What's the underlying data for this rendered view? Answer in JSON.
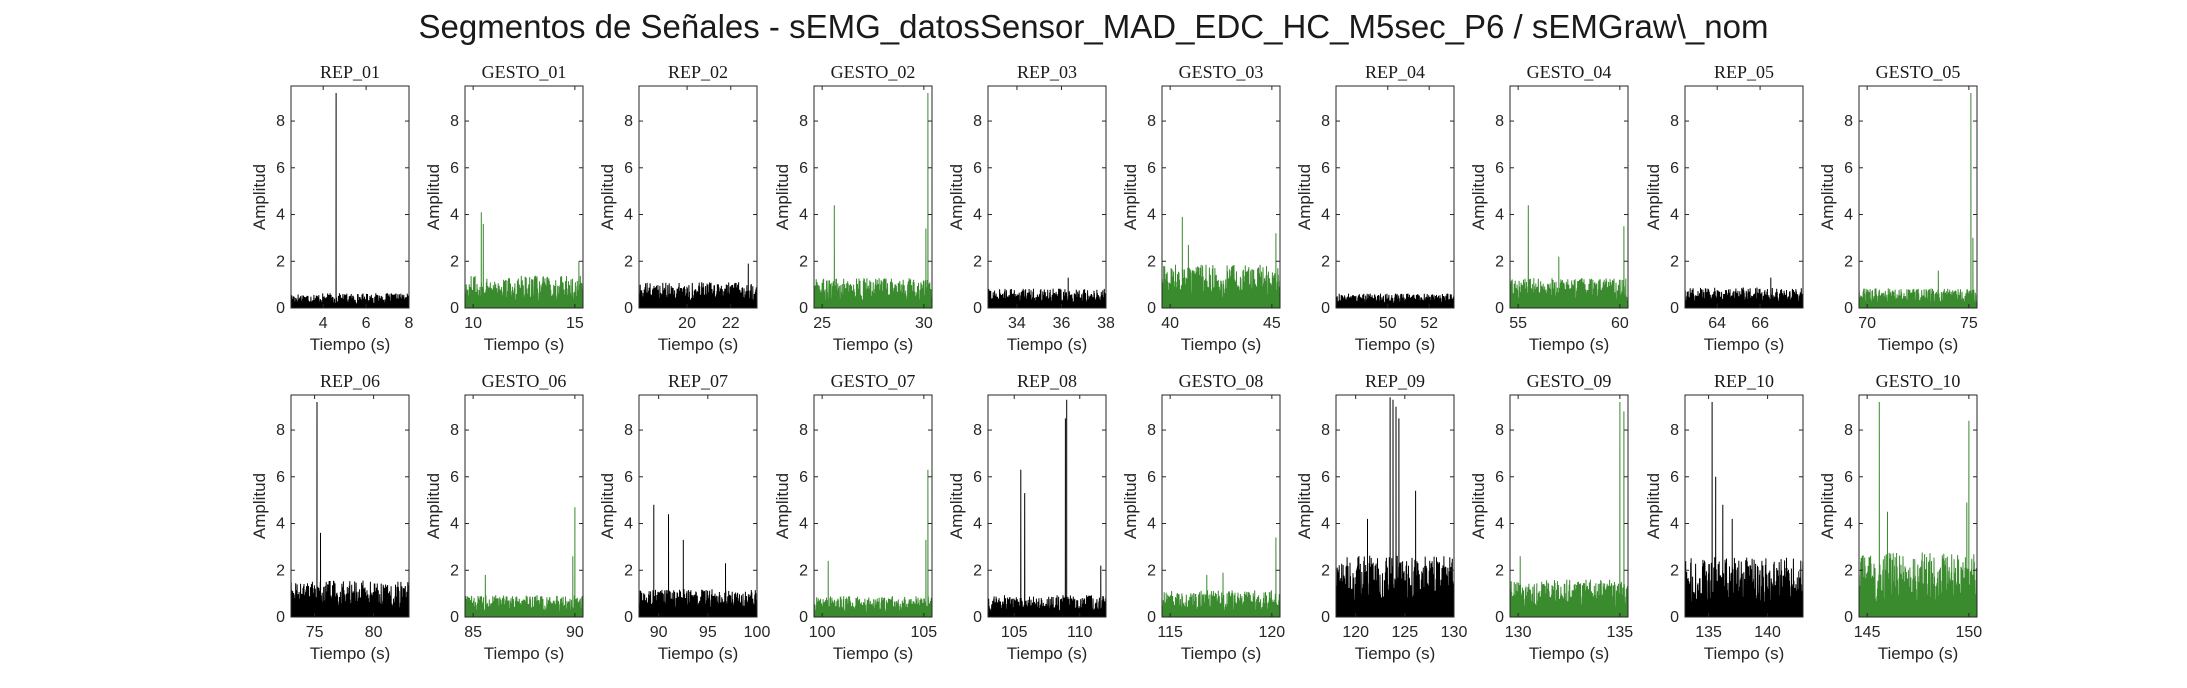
{
  "figure": {
    "title": "Segmentos de Señales - sEMG_datosSensor_MAD_EDC_HC_M5sec_P6 / sEMGraw\\_nom"
  },
  "colors": {
    "rep": "#000000",
    "gesto": "#3a8a2e"
  },
  "chart_data": [
    {
      "type": "line",
      "title": "REP_01",
      "xlabel": "Tiempo (s)",
      "ylabel": "Amplitud",
      "xlim": [
        2.5,
        8
      ],
      "ylim": [
        0,
        9.5
      ],
      "xticks": [
        4,
        6,
        8
      ],
      "yticks": [
        0,
        2,
        4,
        6,
        8
      ],
      "color": "#000000",
      "series": [
        {
          "baseline": 0.45,
          "noise": 0.45,
          "peaks": [
            [
              4.6,
              9.2
            ]
          ]
        }
      ]
    },
    {
      "type": "line",
      "title": "GESTO_01",
      "xlabel": "Tiempo (s)",
      "ylabel": "Amplitud",
      "xlim": [
        9.6,
        15.4
      ],
      "ylim": [
        0,
        9.5
      ],
      "xticks": [
        10,
        15
      ],
      "yticks": [
        0,
        2,
        4,
        6,
        8
      ],
      "color": "#3a8a2e",
      "series": [
        {
          "baseline": 0.7,
          "noise": 1.1,
          "peaks": [
            [
              10.4,
              4.1
            ],
            [
              10.5,
              3.6
            ],
            [
              15.2,
              2.0
            ]
          ]
        }
      ]
    },
    {
      "type": "line",
      "title": "REP_02",
      "xlabel": "Tiempo (s)",
      "ylabel": "Amplitud",
      "xlim": [
        17.8,
        23.2
      ],
      "ylim": [
        0,
        9.5
      ],
      "xticks": [
        20,
        22
      ],
      "yticks": [
        0,
        2,
        4,
        6,
        8
      ],
      "color": "#000000",
      "series": [
        {
          "baseline": 0.75,
          "noise": 0.8,
          "peaks": [
            [
              22.8,
              1.9
            ]
          ]
        }
      ]
    },
    {
      "type": "line",
      "title": "GESTO_02",
      "xlabel": "Tiempo (s)",
      "ylabel": "Amplitud",
      "xlim": [
        24.6,
        30.4
      ],
      "ylim": [
        0,
        9.5
      ],
      "xticks": [
        25,
        30
      ],
      "yticks": [
        0,
        2,
        4,
        6,
        8
      ],
      "color": "#3a8a2e",
      "series": [
        {
          "baseline": 0.7,
          "noise": 1.0,
          "peaks": [
            [
              25.6,
              4.4
            ],
            [
              30.2,
              9.2
            ],
            [
              30.1,
              3.4
            ]
          ]
        }
      ]
    },
    {
      "type": "line",
      "title": "REP_03",
      "xlabel": "Tiempo (s)",
      "ylabel": "Amplitud",
      "xlim": [
        32.7,
        38
      ],
      "ylim": [
        0,
        9.5
      ],
      "xticks": [
        34,
        36,
        38
      ],
      "yticks": [
        0,
        2,
        4,
        6,
        8
      ],
      "color": "#000000",
      "series": [
        {
          "baseline": 0.6,
          "noise": 0.6,
          "peaks": [
            [
              36.3,
              1.3
            ]
          ]
        }
      ]
    },
    {
      "type": "line",
      "title": "GESTO_03",
      "xlabel": "Tiempo (s)",
      "ylabel": "Amplitud",
      "xlim": [
        39.6,
        45.4
      ],
      "ylim": [
        0,
        9.5
      ],
      "xticks": [
        40,
        45
      ],
      "yticks": [
        0,
        2,
        4,
        6,
        8
      ],
      "color": "#3a8a2e",
      "series": [
        {
          "baseline": 0.9,
          "noise": 1.5,
          "peaks": [
            [
              40.6,
              3.9
            ],
            [
              40.9,
              2.7
            ],
            [
              45.2,
              3.2
            ]
          ]
        }
      ]
    },
    {
      "type": "line",
      "title": "REP_04",
      "xlabel": "Tiempo (s)",
      "ylabel": "Amplitud",
      "xlim": [
        47.5,
        53.2
      ],
      "ylim": [
        0,
        9.5
      ],
      "xticks": [
        50,
        52
      ],
      "yticks": [
        0,
        2,
        4,
        6,
        8
      ],
      "color": "#000000",
      "series": [
        {
          "baseline": 0.55,
          "noise": 0.4,
          "peaks": []
        }
      ]
    },
    {
      "type": "line",
      "title": "GESTO_04",
      "xlabel": "Tiempo (s)",
      "ylabel": "Amplitud",
      "xlim": [
        54.6,
        60.4
      ],
      "ylim": [
        0,
        9.5
      ],
      "xticks": [
        55,
        60
      ],
      "yticks": [
        0,
        2,
        4,
        6,
        8
      ],
      "color": "#3a8a2e",
      "series": [
        {
          "baseline": 0.7,
          "noise": 1.0,
          "peaks": [
            [
              55.5,
              4.4
            ],
            [
              60.2,
              3.5
            ],
            [
              57.0,
              2.2
            ]
          ]
        }
      ]
    },
    {
      "type": "line",
      "title": "REP_05",
      "xlabel": "Tiempo (s)",
      "ylabel": "Amplitud",
      "xlim": [
        62.5,
        68
      ],
      "ylim": [
        0,
        9.5
      ],
      "xticks": [
        64,
        66
      ],
      "yticks": [
        0,
        2,
        4,
        6,
        8
      ],
      "color": "#000000",
      "series": [
        {
          "baseline": 0.7,
          "noise": 0.6,
          "peaks": [
            [
              66.5,
              1.3
            ]
          ]
        }
      ]
    },
    {
      "type": "line",
      "title": "GESTO_05",
      "xlabel": "Tiempo (s)",
      "ylabel": "Amplitud",
      "xlim": [
        69.6,
        75.4
      ],
      "ylim": [
        0,
        9.5
      ],
      "xticks": [
        70,
        75
      ],
      "yticks": [
        0,
        2,
        4,
        6,
        8
      ],
      "color": "#3a8a2e",
      "series": [
        {
          "baseline": 0.6,
          "noise": 0.6,
          "peaks": [
            [
              75.1,
              9.2
            ],
            [
              75.2,
              3.0
            ],
            [
              73.5,
              1.6
            ]
          ]
        }
      ]
    },
    {
      "type": "line",
      "title": "REP_06",
      "xlabel": "Tiempo (s)",
      "ylabel": "Amplitud",
      "xlim": [
        73,
        83
      ],
      "ylim": [
        0,
        9.5
      ],
      "xticks": [
        75,
        80
      ],
      "yticks": [
        0,
        2,
        4,
        6,
        8
      ],
      "color": "#000000",
      "series": [
        {
          "baseline": 0.9,
          "noise": 1.2,
          "peaks": [
            [
              75.2,
              9.2
            ],
            [
              75.5,
              3.6
            ]
          ]
        }
      ]
    },
    {
      "type": "line",
      "title": "GESTO_06",
      "xlabel": "Tiempo (s)",
      "ylabel": "Amplitud",
      "xlim": [
        84.6,
        90.4
      ],
      "ylim": [
        0,
        9.5
      ],
      "xticks": [
        85,
        90
      ],
      "yticks": [
        0,
        2,
        4,
        6,
        8
      ],
      "color": "#3a8a2e",
      "series": [
        {
          "baseline": 0.6,
          "noise": 0.7,
          "peaks": [
            [
              85.6,
              1.8
            ],
            [
              90.0,
              4.7
            ],
            [
              89.9,
              2.6
            ]
          ]
        }
      ]
    },
    {
      "type": "line",
      "title": "REP_07",
      "xlabel": "Tiempo (s)",
      "ylabel": "Amplitud",
      "xlim": [
        88,
        100
      ],
      "ylim": [
        0,
        9.5
      ],
      "xticks": [
        90,
        95,
        100
      ],
      "yticks": [
        0,
        2,
        4,
        6,
        8
      ],
      "color": "#000000",
      "series": [
        {
          "baseline": 1.0,
          "noise": 0.8,
          "peaks": [
            [
              89.5,
              4.8
            ],
            [
              91.0,
              4.4
            ],
            [
              92.5,
              3.3
            ],
            [
              96.8,
              2.3
            ]
          ]
        }
      ]
    },
    {
      "type": "line",
      "title": "GESTO_07",
      "xlabel": "Tiempo (s)",
      "ylabel": "Amplitud",
      "xlim": [
        99.6,
        105.4
      ],
      "ylim": [
        0,
        9.5
      ],
      "xticks": [
        100,
        105
      ],
      "yticks": [
        0,
        2,
        4,
        6,
        8
      ],
      "color": "#3a8a2e",
      "series": [
        {
          "baseline": 0.5,
          "noise": 0.7,
          "peaks": [
            [
              100.3,
              2.4
            ],
            [
              105.2,
              6.3
            ],
            [
              105.1,
              3.3
            ]
          ]
        }
      ]
    },
    {
      "type": "line",
      "title": "REP_08",
      "xlabel": "Tiempo (s)",
      "ylabel": "Amplitud",
      "xlim": [
        103,
        112
      ],
      "ylim": [
        0,
        9.5
      ],
      "xticks": [
        105,
        110
      ],
      "yticks": [
        0,
        2,
        4,
        6,
        8
      ],
      "color": "#000000",
      "series": [
        {
          "baseline": 0.6,
          "noise": 0.7,
          "peaks": [
            [
              105.5,
              6.3
            ],
            [
              105.8,
              5.3
            ],
            [
              109.0,
              9.3
            ],
            [
              108.9,
              8.5
            ],
            [
              111.6,
              2.2
            ]
          ]
        }
      ]
    },
    {
      "type": "line",
      "title": "GESTO_08",
      "xlabel": "Tiempo (s)",
      "ylabel": "Amplitud",
      "xlim": [
        114.6,
        120.4
      ],
      "ylim": [
        0,
        9.5
      ],
      "xticks": [
        115,
        120
      ],
      "yticks": [
        0,
        2,
        4,
        6,
        8
      ],
      "color": "#3a8a2e",
      "series": [
        {
          "baseline": 0.6,
          "noise": 0.9,
          "peaks": [
            [
              116.8,
              1.8
            ],
            [
              117.6,
              1.9
            ],
            [
              120.2,
              3.4
            ]
          ]
        }
      ]
    },
    {
      "type": "line",
      "title": "REP_09",
      "xlabel": "Tiempo (s)",
      "ylabel": "Amplitud",
      "xlim": [
        118,
        130
      ],
      "ylim": [
        0,
        9.5
      ],
      "xticks": [
        120,
        125,
        130
      ],
      "yticks": [
        0,
        2,
        4,
        6,
        8
      ],
      "color": "#000000",
      "series": [
        {
          "baseline": 1.6,
          "noise": 2.0,
          "peaks": [
            [
              123.5,
              9.4
            ],
            [
              123.8,
              9.3
            ],
            [
              124.1,
              9.0
            ],
            [
              124.4,
              8.5
            ],
            [
              121.2,
              4.2
            ],
            [
              126.1,
              5.4
            ]
          ]
        }
      ]
    },
    {
      "type": "line",
      "title": "GESTO_09",
      "xlabel": "Tiempo (s)",
      "ylabel": "Amplitud",
      "xlim": [
        129.6,
        135.4
      ],
      "ylim": [
        0,
        9.5
      ],
      "xticks": [
        130,
        135
      ],
      "yticks": [
        0,
        2,
        4,
        6,
        8
      ],
      "color": "#3a8a2e",
      "series": [
        {
          "baseline": 1.0,
          "noise": 1.2,
          "peaks": [
            [
              130.1,
              2.6
            ],
            [
              135.0,
              9.2
            ],
            [
              135.2,
              8.8
            ]
          ]
        }
      ]
    },
    {
      "type": "line",
      "title": "REP_10",
      "xlabel": "Tiempo (s)",
      "ylabel": "Amplitud",
      "xlim": [
        133,
        143
      ],
      "ylim": [
        0,
        9.5
      ],
      "xticks": [
        135,
        140
      ],
      "yticks": [
        0,
        2,
        4,
        6,
        8
      ],
      "color": "#000000",
      "series": [
        {
          "baseline": 1.4,
          "noise": 2.0,
          "peaks": [
            [
              135.3,
              9.2
            ],
            [
              135.6,
              6.0
            ],
            [
              136.2,
              4.8
            ],
            [
              137.0,
              4.2
            ]
          ]
        }
      ]
    },
    {
      "type": "line",
      "title": "GESTO_10",
      "xlabel": "Tiempo (s)",
      "ylabel": "Amplitud",
      "xlim": [
        144.6,
        150.4
      ],
      "ylim": [
        0,
        9.5
      ],
      "xticks": [
        145,
        150
      ],
      "yticks": [
        0,
        2,
        4,
        6,
        8
      ],
      "color": "#3a8a2e",
      "series": [
        {
          "baseline": 1.4,
          "noise": 2.2,
          "peaks": [
            [
              145.6,
              9.2
            ],
            [
              146.0,
              4.5
            ],
            [
              150.0,
              8.4
            ],
            [
              149.9,
              4.9
            ]
          ]
        }
      ]
    }
  ]
}
